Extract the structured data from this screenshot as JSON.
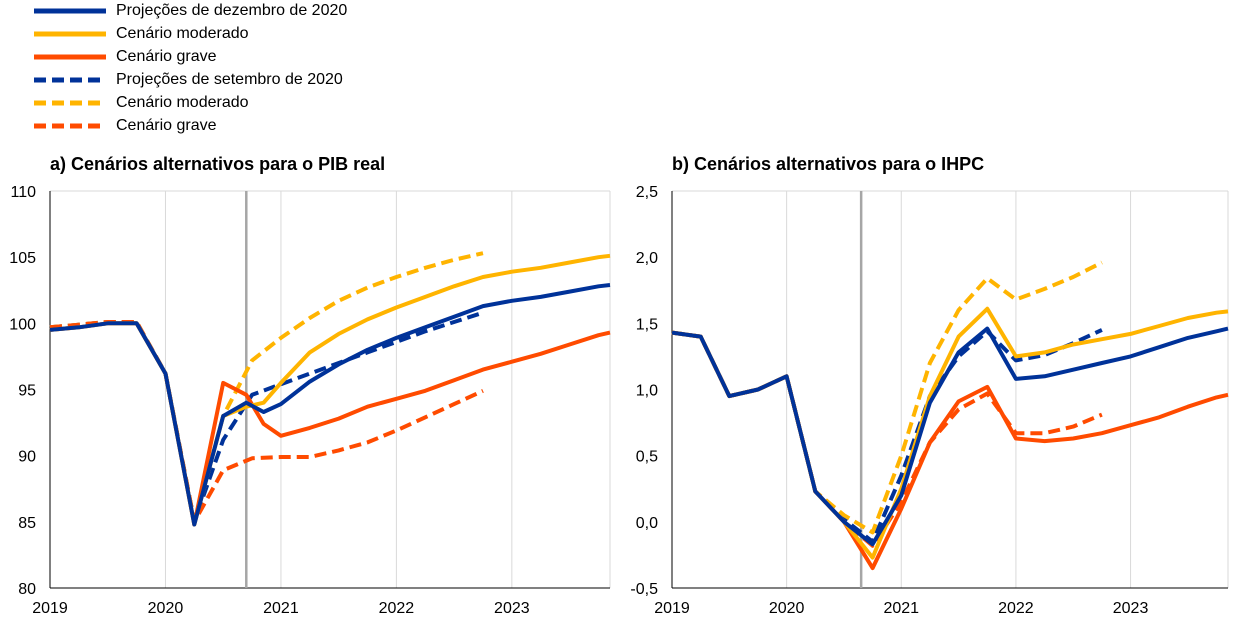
{
  "legend": [
    {
      "label": "Projeções de dezembro de 2020",
      "color": "#003299",
      "dashed": false
    },
    {
      "label": "Cenário moderado",
      "color": "#FFB400",
      "dashed": false
    },
    {
      "label": "Cenário grave",
      "color": "#FF4B00",
      "dashed": false
    },
    {
      "label": "Projeções de setembro de 2020",
      "color": "#003299",
      "dashed": true
    },
    {
      "label": "Cenário moderado",
      "color": "#FFB400",
      "dashed": true
    },
    {
      "label": "Cenário grave",
      "color": "#FF4B00",
      "dashed": true
    }
  ],
  "chart_data": [
    {
      "type": "line",
      "title": "a) Cenários alternativos para o PIB real",
      "xlabel": "",
      "ylabel": "",
      "x_ticks": [
        "2019",
        "2020",
        "2021",
        "2022",
        "2023"
      ],
      "xlim": [
        2019.0,
        2023.85
      ],
      "ylim": [
        80,
        110
      ],
      "y_ticks": [
        "80",
        "85",
        "90",
        "95",
        "100",
        "105",
        "110"
      ],
      "y_tick_values": [
        80,
        85,
        90,
        95,
        100,
        105,
        110
      ],
      "vline_x": 2020.7,
      "grid": "vertical",
      "series": [
        {
          "name": "Projeções de dezembro de 2020",
          "color": "#003299",
          "dashed": false,
          "x": [
            2019.0,
            2019.25,
            2019.5,
            2019.75,
            2020.0,
            2020.25,
            2020.5,
            2020.7,
            2020.85,
            2021.0,
            2021.25,
            2021.5,
            2021.75,
            2022.0,
            2022.25,
            2022.5,
            2022.75,
            2023.0,
            2023.25,
            2023.5,
            2023.75,
            2023.85
          ],
          "y": [
            99.5,
            99.7,
            100.0,
            100.0,
            96.2,
            84.8,
            93.0,
            94.0,
            93.3,
            93.9,
            95.6,
            96.9,
            98.0,
            98.9,
            99.7,
            100.5,
            101.3,
            101.7,
            102.0,
            102.4,
            102.8,
            102.9
          ]
        },
        {
          "name": "Cenário moderado",
          "color": "#FFB400",
          "dashed": false,
          "x": [
            2019.0,
            2019.25,
            2019.5,
            2019.75,
            2020.0,
            2020.25,
            2020.5,
            2020.7,
            2020.85,
            2021.0,
            2021.25,
            2021.5,
            2021.75,
            2022.0,
            2022.25,
            2022.5,
            2022.75,
            2023.0,
            2023.25,
            2023.5,
            2023.75,
            2023.85
          ],
          "y": [
            99.5,
            99.7,
            100.0,
            100.0,
            96.2,
            84.8,
            93.0,
            93.7,
            94.0,
            95.5,
            97.8,
            99.2,
            100.3,
            101.2,
            102.0,
            102.8,
            103.5,
            103.9,
            104.2,
            104.6,
            105.0,
            105.1
          ]
        },
        {
          "name": "Cenário grave",
          "color": "#FF4B00",
          "dashed": false,
          "x": [
            2019.0,
            2019.25,
            2019.5,
            2019.75,
            2020.0,
            2020.25,
            2020.5,
            2020.7,
            2020.85,
            2021.0,
            2021.25,
            2021.5,
            2021.75,
            2022.0,
            2022.25,
            2022.5,
            2022.75,
            2023.0,
            2023.25,
            2023.5,
            2023.75,
            2023.85
          ],
          "y": [
            99.5,
            99.7,
            100.0,
            100.0,
            96.2,
            84.8,
            95.5,
            94.6,
            92.4,
            91.5,
            92.1,
            92.8,
            93.7,
            94.3,
            94.9,
            95.7,
            96.5,
            97.1,
            97.7,
            98.4,
            99.1,
            99.3
          ]
        },
        {
          "name": "Projeções de setembro de 2020",
          "color": "#003299",
          "dashed": true,
          "x": [
            2019.0,
            2019.25,
            2019.5,
            2019.75,
            2020.0,
            2020.25,
            2020.5,
            2020.75,
            2021.0,
            2021.25,
            2021.5,
            2021.75,
            2022.0,
            2022.25,
            2022.5,
            2022.75
          ],
          "y": [
            99.7,
            99.9,
            100.1,
            100.1,
            96.2,
            85.0,
            91.2,
            94.6,
            95.4,
            96.2,
            97.0,
            97.8,
            98.6,
            99.4,
            100.1,
            100.8
          ]
        },
        {
          "name": "Cenário moderado",
          "color": "#FFB400",
          "dashed": true,
          "x": [
            2019.0,
            2019.25,
            2019.5,
            2019.75,
            2020.0,
            2020.25,
            2020.5,
            2020.75,
            2021.0,
            2021.25,
            2021.5,
            2021.75,
            2022.0,
            2022.25,
            2022.5,
            2022.75
          ],
          "y": [
            99.7,
            99.9,
            100.1,
            100.1,
            96.2,
            85.0,
            93.0,
            97.2,
            98.9,
            100.4,
            101.7,
            102.7,
            103.5,
            104.2,
            104.8,
            105.3
          ]
        },
        {
          "name": "Cenário grave",
          "color": "#FF4B00",
          "dashed": true,
          "x": [
            2019.0,
            2019.25,
            2019.5,
            2019.75,
            2020.0,
            2020.25,
            2020.5,
            2020.75,
            2021.0,
            2021.25,
            2021.5,
            2021.75,
            2022.0,
            2022.25,
            2022.5,
            2022.75
          ],
          "y": [
            99.7,
            99.9,
            100.1,
            100.1,
            96.2,
            85.0,
            88.9,
            89.8,
            89.9,
            89.9,
            90.4,
            91.0,
            91.9,
            92.9,
            93.9,
            94.9
          ]
        }
      ]
    },
    {
      "type": "line",
      "title": "b) Cenários alternativos para o IHPC",
      "xlabel": "",
      "ylabel": "",
      "x_ticks": [
        "2019",
        "2020",
        "2021",
        "2022",
        "2023"
      ],
      "xlim": [
        2019.0,
        2023.85
      ],
      "ylim": [
        -0.5,
        2.5
      ],
      "y_ticks": [
        "-0,5",
        "0,0",
        "0,5",
        "1,0",
        "1,5",
        "2,0",
        "2,5"
      ],
      "y_tick_values": [
        -0.5,
        0.0,
        0.5,
        1.0,
        1.5,
        2.0,
        2.5
      ],
      "vline_x": 2020.65,
      "grid": "vertical",
      "series": [
        {
          "name": "Projeções de dezembro de 2020",
          "color": "#003299",
          "dashed": false,
          "x": [
            2019.0,
            2019.25,
            2019.5,
            2019.75,
            2020.0,
            2020.25,
            2020.5,
            2020.75,
            2021.0,
            2021.25,
            2021.5,
            2021.75,
            2022.0,
            2022.25,
            2022.5,
            2022.75,
            2023.0,
            2023.25,
            2023.5,
            2023.75,
            2023.85
          ],
          "y": [
            1.43,
            1.4,
            0.95,
            1.0,
            1.1,
            0.23,
            0.0,
            -0.17,
            0.2,
            0.9,
            1.28,
            1.46,
            1.08,
            1.1,
            1.15,
            1.2,
            1.25,
            1.32,
            1.39,
            1.44,
            1.46
          ]
        },
        {
          "name": "Cenário moderado",
          "color": "#FFB400",
          "dashed": false,
          "x": [
            2019.0,
            2019.25,
            2019.5,
            2019.75,
            2020.0,
            2020.25,
            2020.5,
            2020.75,
            2021.0,
            2021.25,
            2021.5,
            2021.75,
            2022.0,
            2022.25,
            2022.5,
            2022.75,
            2023.0,
            2023.25,
            2023.5,
            2023.75,
            2023.85
          ],
          "y": [
            1.43,
            1.4,
            0.95,
            1.0,
            1.1,
            0.23,
            0.0,
            -0.27,
            0.25,
            0.95,
            1.4,
            1.61,
            1.25,
            1.28,
            1.34,
            1.38,
            1.42,
            1.48,
            1.54,
            1.58,
            1.59
          ]
        },
        {
          "name": "Cenário grave",
          "color": "#FF4B00",
          "dashed": false,
          "x": [
            2019.0,
            2019.25,
            2019.5,
            2019.75,
            2020.0,
            2020.25,
            2020.5,
            2020.75,
            2021.0,
            2021.25,
            2021.5,
            2021.75,
            2022.0,
            2022.25,
            2022.5,
            2022.75,
            2023.0,
            2023.25,
            2023.5,
            2023.75,
            2023.85
          ],
          "y": [
            1.43,
            1.4,
            0.95,
            1.0,
            1.1,
            0.23,
            0.0,
            -0.35,
            0.1,
            0.6,
            0.91,
            1.02,
            0.63,
            0.61,
            0.63,
            0.67,
            0.73,
            0.79,
            0.87,
            0.94,
            0.96
          ]
        },
        {
          "name": "Projeções de setembro de 2020",
          "color": "#003299",
          "dashed": true,
          "x": [
            2019.0,
            2019.25,
            2019.5,
            2019.75,
            2020.0,
            2020.25,
            2020.5,
            2020.75,
            2021.0,
            2021.25,
            2021.5,
            2021.75,
            2022.0,
            2022.25,
            2022.5,
            2022.75
          ],
          "y": [
            1.43,
            1.4,
            0.95,
            1.0,
            1.1,
            0.23,
            0.02,
            -0.15,
            0.35,
            0.95,
            1.25,
            1.44,
            1.22,
            1.26,
            1.35,
            1.45
          ]
        },
        {
          "name": "Cenário moderado",
          "color": "#FFB400",
          "dashed": true,
          "x": [
            2019.0,
            2019.25,
            2019.5,
            2019.75,
            2020.0,
            2020.25,
            2020.5,
            2020.75,
            2021.0,
            2021.25,
            2021.5,
            2021.75,
            2022.0,
            2022.25,
            2022.5,
            2022.75
          ],
          "y": [
            1.43,
            1.4,
            0.95,
            1.0,
            1.1,
            0.23,
            0.05,
            -0.08,
            0.5,
            1.2,
            1.6,
            1.84,
            1.68,
            1.76,
            1.85,
            1.96
          ]
        },
        {
          "name": "Cenário grave",
          "color": "#FF4B00",
          "dashed": true,
          "x": [
            2019.0,
            2019.25,
            2019.5,
            2019.75,
            2020.0,
            2020.25,
            2020.5,
            2020.75,
            2021.0,
            2021.25,
            2021.5,
            2021.75,
            2022.0,
            2022.25,
            2022.5,
            2022.75
          ],
          "y": [
            1.43,
            1.4,
            0.95,
            1.0,
            1.1,
            0.23,
            0.0,
            -0.18,
            0.15,
            0.6,
            0.85,
            0.97,
            0.67,
            0.67,
            0.72,
            0.81
          ]
        }
      ]
    }
  ]
}
